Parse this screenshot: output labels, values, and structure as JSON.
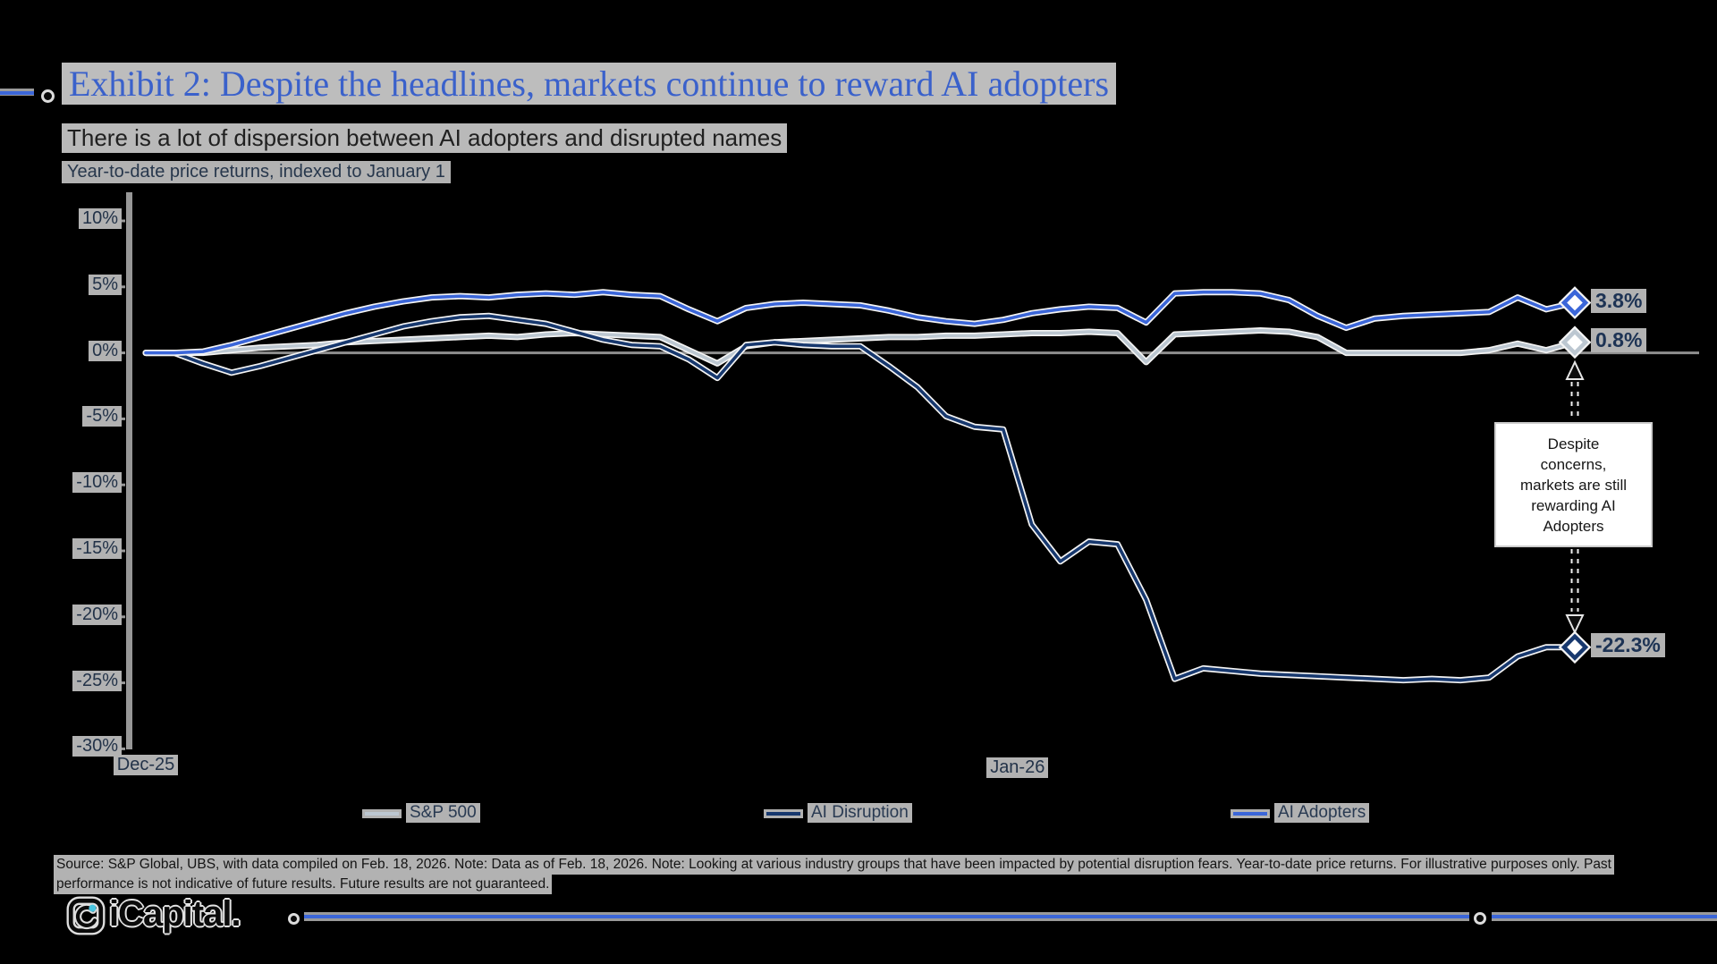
{
  "header": {
    "title": "Exhibit 2: Despite the headlines, markets continue to reward AI adopters",
    "subtitle": "There is a lot of dispersion between AI adopters and disrupted names",
    "axis_note": "Year-to-date price returns, indexed to January 1"
  },
  "chart_data": {
    "type": "line",
    "title": "Year-to-date price returns, indexed to January 1",
    "y_unit": "%",
    "ylim": [
      -30,
      10
    ],
    "y_ticks": [
      10,
      5,
      0,
      -5,
      -10,
      -15,
      -20,
      -25,
      -30
    ],
    "x_tick_labels": [
      {
        "label": "Dec-25",
        "frac": 0.0
      },
      {
        "label": "Jan-26",
        "frac": 0.61
      }
    ],
    "grid": "zero-line-only",
    "legend_position": "bottom",
    "series": [
      {
        "name": "S&P 500",
        "color": "#bcc7d1",
        "end_label": "0.8%",
        "values": [
          0.0,
          0.0,
          0.0,
          0.2,
          0.4,
          0.5,
          0.6,
          0.8,
          0.9,
          1.0,
          1.1,
          1.2,
          1.3,
          1.2,
          1.4,
          1.5,
          1.4,
          1.3,
          1.2,
          0.2,
          -0.8,
          0.5,
          0.8,
          0.9,
          1.0,
          1.1,
          1.2,
          1.2,
          1.3,
          1.3,
          1.4,
          1.5,
          1.5,
          1.6,
          1.5,
          -0.7,
          1.4,
          1.5,
          1.6,
          1.7,
          1.6,
          1.2,
          0.0,
          0.0,
          0.0,
          0.0,
          0.0,
          0.2,
          0.7,
          0.2,
          0.8
        ]
      },
      {
        "name": "AI Disruption",
        "color": "#17386e",
        "end_label": "-22.3%",
        "values": [
          0.0,
          0.0,
          -0.8,
          -1.5,
          -1.0,
          -0.4,
          0.2,
          0.8,
          1.4,
          2.0,
          2.4,
          2.7,
          2.8,
          2.5,
          2.2,
          1.6,
          1.0,
          0.6,
          0.5,
          -0.5,
          -1.9,
          0.6,
          0.8,
          0.6,
          0.5,
          0.5,
          -1.0,
          -2.6,
          -4.8,
          -5.6,
          -5.8,
          -13.0,
          -15.8,
          -14.3,
          -14.5,
          -18.7,
          -24.7,
          -23.9,
          -24.1,
          -24.3,
          -24.4,
          -24.5,
          -24.6,
          -24.7,
          -24.8,
          -24.7,
          -24.8,
          -24.6,
          -23.0,
          -22.3,
          -22.3
        ]
      },
      {
        "name": "AI Adopters",
        "color": "#3b66d9",
        "end_label": "3.8%",
        "values": [
          0.0,
          0.0,
          0.1,
          0.6,
          1.2,
          1.8,
          2.4,
          3.0,
          3.5,
          3.9,
          4.2,
          4.3,
          4.2,
          4.4,
          4.5,
          4.4,
          4.6,
          4.4,
          4.3,
          3.3,
          2.4,
          3.4,
          3.7,
          3.8,
          3.7,
          3.6,
          3.2,
          2.7,
          2.4,
          2.2,
          2.5,
          3.0,
          3.3,
          3.5,
          3.4,
          2.3,
          4.5,
          4.6,
          4.6,
          4.5,
          4.0,
          2.8,
          1.9,
          2.6,
          2.8,
          2.9,
          3.0,
          3.1,
          4.2,
          3.3,
          3.8
        ]
      }
    ]
  },
  "annotation": {
    "lines": [
      "Despite",
      "concerns,",
      "markets are still",
      "rewarding AI",
      "Adopters"
    ]
  },
  "footer": {
    "line1": "Source: S&P Global, UBS, with data compiled on Feb. 18, 2026. Note: Data as of Feb. 18, 2026. Note: Looking at various industry groups that have been impacted by potential disruption fears. Year-to-date price returns. For illustrative purposes only. Past",
    "line2": "performance is not indicative of future results. Future results are not guaranteed."
  },
  "logo": {
    "text": "iCapital."
  },
  "colors": {
    "accent_blue": "#3b66d9",
    "navy": "#17386e",
    "light_gray_line": "#bcc7d1",
    "title_blue": "#3a61cb",
    "logo_cyan": "#49c5e0",
    "axis_gray": "#979797"
  }
}
